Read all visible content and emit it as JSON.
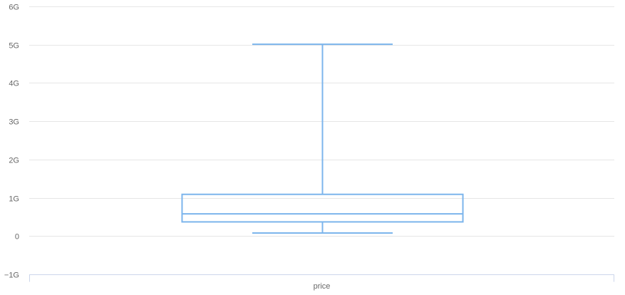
{
  "chart_data": {
    "type": "box",
    "categories": [
      "price"
    ],
    "yticks": [
      {
        "value": -1000000000,
        "label": "−1G"
      },
      {
        "value": 0,
        "label": "0"
      },
      {
        "value": 1000000000,
        "label": "1G"
      },
      {
        "value": 2000000000,
        "label": "2G"
      },
      {
        "value": 3000000000,
        "label": "3G"
      },
      {
        "value": 4000000000,
        "label": "4G"
      },
      {
        "value": 5000000000,
        "label": "5G"
      },
      {
        "value": 6000000000,
        "label": "6G"
      }
    ],
    "ylim": [
      -1000000000,
      6000000000
    ],
    "series": [
      {
        "category": "price",
        "min": 80000000,
        "q1": 370000000,
        "median": 580000000,
        "q3": 1090000000,
        "max": 5010000000
      }
    ],
    "grid": true,
    "colors": {
      "box": "#7cb5ec",
      "grid": "#e6e6e6",
      "axis": "#ccd6eb",
      "text": "#666666"
    }
  }
}
